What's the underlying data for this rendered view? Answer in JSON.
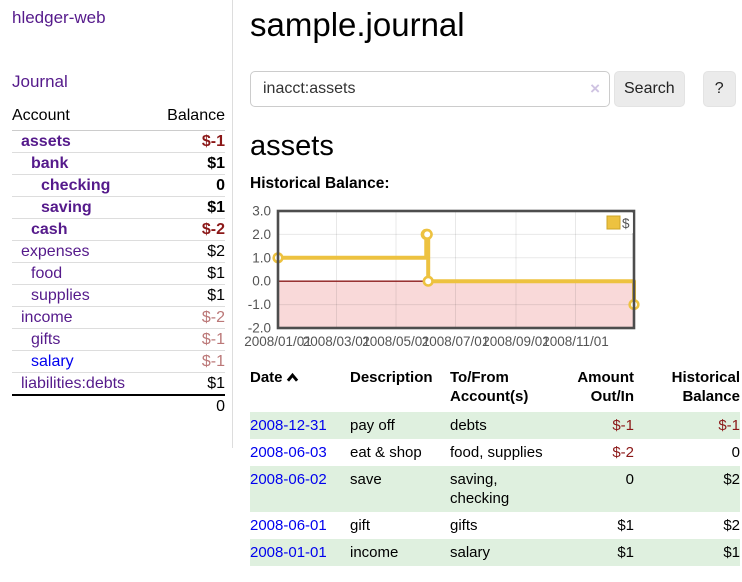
{
  "app": {
    "brand": "hledger-web",
    "nav_journal": "Journal"
  },
  "colors": {
    "brand-purple": "#551a8b",
    "link-blue": "#0000ee",
    "negative-strong": "#8b1717",
    "negative-pale": "#bb7777",
    "row-stripe-green": "#dff0df",
    "chart-line": "#edc240",
    "chart-negative-fill": "#f9d9d9",
    "chart-zero-line": "#8b1a1a"
  },
  "sidebar": {
    "header": {
      "account": "Account",
      "balance": "Balance"
    },
    "accounts": [
      {
        "name": "assets",
        "balance": "$-1"
      },
      {
        "name": "bank",
        "balance": "$1"
      },
      {
        "name": "checking",
        "balance": "0"
      },
      {
        "name": "saving",
        "balance": "$1"
      },
      {
        "name": "cash",
        "balance": "$-2"
      },
      {
        "name": "expenses",
        "balance": "$2"
      },
      {
        "name": "food",
        "balance": "$1"
      },
      {
        "name": "supplies",
        "balance": "$1"
      },
      {
        "name": "income",
        "balance": "$-2"
      },
      {
        "name": "gifts",
        "balance": "$-1"
      },
      {
        "name": "salary",
        "balance": "$-1"
      },
      {
        "name": "liabilities:debts",
        "balance": "$1"
      }
    ],
    "total": "0"
  },
  "main": {
    "title": "sample.journal"
  },
  "search": {
    "value": "inacct:assets",
    "clear_icon": "×",
    "search_label": "Search",
    "help_label": "?"
  },
  "account_page": {
    "title": "assets",
    "chart_label": "Historical Balance:"
  },
  "chart_data": {
    "type": "line",
    "step": true,
    "title": "Historical Balance:",
    "series": [
      {
        "name": "$",
        "points": [
          [
            "2008-01-01",
            1
          ],
          [
            "2008-06-01",
            2
          ],
          [
            "2008-06-02",
            2
          ],
          [
            "2008-06-03",
            0
          ],
          [
            "2008-12-31",
            -1
          ]
        ]
      }
    ],
    "xlim": [
      "2008-01-01",
      "2008-12-31"
    ],
    "ylim": [
      -2,
      3
    ],
    "x_ticks": [
      "2008/01/01",
      "2008/03/01",
      "2008/05/01",
      "2008/07/01",
      "2008/09/01",
      "2008/11/01"
    ],
    "y_ticks": [
      3,
      2,
      1,
      0,
      -1,
      -2
    ],
    "grid": true,
    "legend_position": "top-right",
    "negative_region_shaded": true
  },
  "register": {
    "headers": [
      "Date",
      "Description",
      "To/From Account(s)",
      "Amount Out/In",
      "Historical Balance"
    ],
    "rows": [
      {
        "date": "2008-12-31",
        "description": "pay off",
        "accounts": "debts",
        "amount": "$-1",
        "balance": "$-1"
      },
      {
        "date": "2008-06-03",
        "description": "eat & shop",
        "accounts": "food, supplies",
        "amount": "$-2",
        "balance": "0"
      },
      {
        "date": "2008-06-02",
        "description": "save",
        "accounts": "saving, checking",
        "amount": "0",
        "balance": "$2"
      },
      {
        "date": "2008-06-01",
        "description": "gift",
        "accounts": "gifts",
        "amount": "$1",
        "balance": "$2"
      },
      {
        "date": "2008-01-01",
        "description": "income",
        "accounts": "salary",
        "amount": "$1",
        "balance": "$1"
      }
    ]
  }
}
